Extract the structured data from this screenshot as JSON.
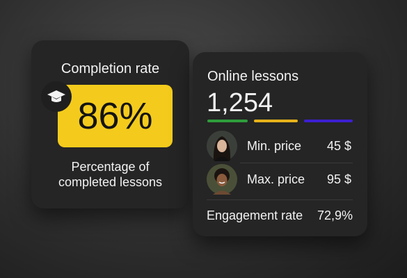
{
  "completion_card": {
    "title": "Completion rate",
    "value": "86%",
    "caption_lines": [
      "Percentage of",
      "completed lessons"
    ]
  },
  "lessons_card": {
    "title": "Online lessons",
    "count": "1,254",
    "rows": [
      {
        "label": "Min. price",
        "value": "45 $"
      },
      {
        "label": "Max. price",
        "value": "95 $"
      }
    ],
    "engagement": {
      "label": "Engagement rate",
      "value": "72,9%"
    }
  }
}
